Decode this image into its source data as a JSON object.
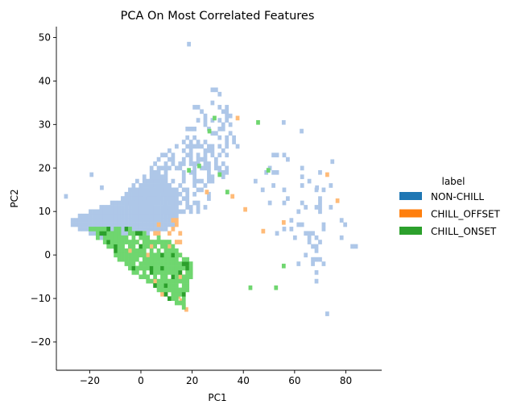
{
  "chart_data": {
    "type": "heatmap",
    "title": "PCA On Most Correlated Features",
    "xlabel": "PC1",
    "ylabel": "PC2",
    "xlim": [
      -33,
      94
    ],
    "ylim": [
      -26.5,
      52.5
    ],
    "xticks": [
      -20,
      0,
      20,
      40,
      60,
      80
    ],
    "yticks": [
      -20,
      -10,
      0,
      10,
      20,
      30,
      40,
      50
    ],
    "grid": false,
    "legend": {
      "title": "label",
      "placement": "right",
      "entries": [
        {
          "name": "NON-CHILL",
          "color": "#1f77b4"
        },
        {
          "name": "CHILL_OFFSET",
          "color": "#ff7f0e"
        },
        {
          "name": "CHILL_ONSET",
          "color": "#2ca02c"
        }
      ]
    },
    "bin_colors": {
      "NON-CHILL": "#aec7e8",
      "CHILL_OFFSET": "#ffbb78",
      "CHILL_ONSET": "#6fd66f",
      "CHILL_ONSET_dense": "#2ca02c"
    },
    "series": [
      {
        "name": "NON-CHILL",
        "regions": [
          {
            "shape": "polygon",
            "points": [
              [
                -28,
                8
              ],
              [
                -10,
                12
              ],
              [
                5,
                18
              ],
              [
                15,
                14
              ],
              [
                12,
                6
              ],
              [
                0,
                4
              ],
              [
                -15,
                3
              ],
              [
                -28,
                6
              ]
            ],
            "density": 1.0
          },
          {
            "shape": "polygon",
            "points": [
              [
                -10,
                12
              ],
              [
                5,
                22
              ],
              [
                20,
                28
              ],
              [
                35,
                20
              ],
              [
                25,
                10
              ],
              [
                12,
                8
              ]
            ],
            "density": 0.45
          },
          {
            "shape": "polygon",
            "points": [
              [
                15,
                30
              ],
              [
                25,
                39
              ],
              [
                32,
                38
              ],
              [
                38,
                25
              ],
              [
                30,
                18
              ]
            ],
            "density": 0.2
          },
          {
            "shape": "polygon",
            "points": [
              [
                40,
                20
              ],
              [
                60,
                25
              ],
              [
                75,
                15
              ],
              [
                70,
                0
              ],
              [
                50,
                5
              ]
            ],
            "density": 0.1
          },
          {
            "shape": "polygon",
            "points": [
              [
                60,
                5
              ],
              [
                80,
                10
              ],
              [
                90,
                -2
              ],
              [
                75,
                -8
              ],
              [
                60,
                -5
              ]
            ],
            "density": 0.06
          }
        ],
        "points": [
          [
            -30,
            13
          ],
          [
            18,
            48
          ],
          [
            -16,
            15
          ],
          [
            -20,
            18
          ],
          [
            55,
            30
          ],
          [
            62,
            28
          ],
          [
            72,
            -14
          ],
          [
            68,
            15
          ],
          [
            74,
            21
          ]
        ]
      },
      {
        "name": "CHILL_OFFSET",
        "regions": [
          {
            "shape": "polygon",
            "points": [
              [
                -12,
                4
              ],
              [
                15,
                8
              ],
              [
                20,
                -8
              ],
              [
                8,
                -10
              ],
              [
                -5,
                -3
              ]
            ],
            "density": 0.15
          }
        ],
        "points": [
          [
            15,
            -11
          ],
          [
            16,
            -12
          ],
          [
            17,
            -13
          ],
          [
            14,
            -10
          ],
          [
            12,
            -9
          ],
          [
            25,
            14
          ],
          [
            35,
            13
          ],
          [
            47,
            5
          ],
          [
            55,
            7
          ],
          [
            37,
            31
          ],
          [
            72,
            18
          ],
          [
            76,
            12
          ],
          [
            40,
            10
          ]
        ]
      },
      {
        "name": "CHILL_ONSET",
        "regions": [
          {
            "shape": "band",
            "points": [
              [
                -22,
                6
              ],
              [
                -5,
                -4
              ],
              [
                16,
                -13
              ],
              [
                20,
                -3
              ],
              [
                10,
                3
              ],
              [
                -8,
                6
              ]
            ],
            "density": 0.85
          }
        ],
        "points": [
          [
            26,
            28
          ],
          [
            22,
            20
          ],
          [
            28,
            31
          ],
          [
            45,
            30
          ],
          [
            49,
            19
          ],
          [
            55,
            -3
          ],
          [
            42,
            -8
          ],
          [
            52,
            -8
          ],
          [
            30,
            18
          ],
          [
            18,
            19
          ],
          [
            33,
            14
          ]
        ]
      }
    ]
  }
}
